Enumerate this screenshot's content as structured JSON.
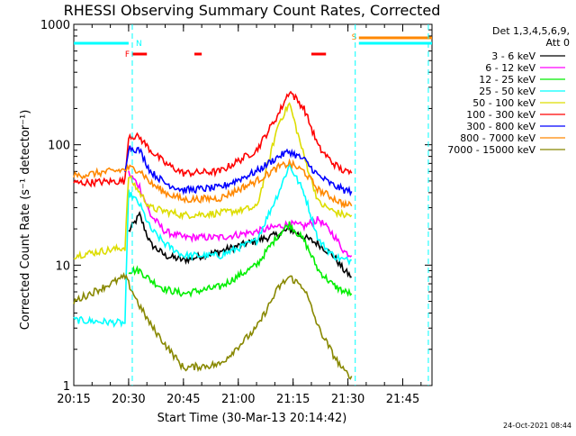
{
  "chart_data": {
    "type": "line",
    "title": "RHESSI Observing Summary Count Rates, Corrected",
    "xlabel": "Start Time (30-Mar-13 20:14:42)",
    "ylabel": "Corrected Count Rate (s⁻¹ detector⁻¹)",
    "y_scale": "log",
    "ylim": [
      1,
      1000
    ],
    "xlim": [
      "20:15",
      "21:53"
    ],
    "x_ticks": [
      "20:15",
      "20:30",
      "20:45",
      "21:00",
      "21:15",
      "21:30",
      "21:45"
    ],
    "y_ticks": [
      "1",
      "10",
      "100",
      "1000"
    ],
    "legend": {
      "placement": "right",
      "header": [
        "Det 1,3,4,5,6,9,",
        "Att 0"
      ]
    },
    "series": [
      {
        "name": "3 - 6 keV",
        "color": "#000000",
        "x": [
          "20:15",
          "20:29",
          "20:30",
          "20:33",
          "20:36",
          "20:40",
          "20:45",
          "20:55",
          "21:05",
          "21:11",
          "21:14",
          "21:18",
          "21:22",
          "21:26",
          "21:29",
          "21:31"
        ],
        "y": [
          null,
          null,
          19,
          26,
          15,
          12,
          11,
          13,
          16,
          18,
          20,
          17,
          15,
          12,
          9,
          8
        ]
      },
      {
        "name": "6 - 12 keV",
        "color": "#ff00ff",
        "x": [
          "20:15",
          "20:29",
          "20:30",
          "20:33",
          "20:36",
          "20:40",
          "20:45",
          "20:55",
          "21:05",
          "21:11",
          "21:14",
          "21:18",
          "21:22",
          "21:26",
          "21:29",
          "21:31"
        ],
        "y": [
          null,
          null,
          58,
          45,
          26,
          19,
          17,
          17,
          19,
          21,
          22,
          21,
          24,
          18,
          13,
          12
        ]
      },
      {
        "name": "12 - 25 keV",
        "color": "#00ee00",
        "x": [
          "20:15",
          "20:29",
          "20:30",
          "20:33",
          "20:36",
          "20:40",
          "20:45",
          "20:55",
          "21:05",
          "21:11",
          "21:14",
          "21:18",
          "21:22",
          "21:26",
          "21:29",
          "21:31"
        ],
        "y": [
          null,
          null,
          9,
          9,
          7.5,
          6.3,
          5.8,
          6.6,
          10,
          18,
          22,
          16,
          9,
          6.8,
          6,
          5.8
        ]
      },
      {
        "name": "25 - 50 keV",
        "color": "#00ffff",
        "x": [
          "20:15",
          "20:29",
          "20:30",
          "20:33",
          "20:36",
          "20:40",
          "20:45",
          "20:55",
          "21:05",
          "21:11",
          "21:14",
          "21:18",
          "21:22",
          "21:26",
          "21:29",
          "21:31"
        ],
        "y": [
          3.5,
          3.3,
          40,
          32,
          20,
          15,
          12,
          12,
          16,
          40,
          68,
          40,
          16,
          12,
          11,
          11
        ]
      },
      {
        "name": "50 - 100 keV",
        "color": "#dddd00",
        "x": [
          "20:15",
          "20:29",
          "20:30",
          "20:33",
          "20:36",
          "20:40",
          "20:45",
          "20:55",
          "21:05",
          "21:11",
          "21:14",
          "21:18",
          "21:22",
          "21:26",
          "21:29",
          "21:31"
        ],
        "y": [
          12,
          14,
          55,
          40,
          30,
          28,
          26,
          27,
          30,
          150,
          220,
          80,
          33,
          28,
          26,
          26
        ]
      },
      {
        "name": "100 - 300 keV",
        "color": "#ff0000",
        "x": [
          "20:15",
          "20:29",
          "20:30",
          "20:33",
          "20:36",
          "20:40",
          "20:45",
          "20:55",
          "21:05",
          "21:11",
          "21:14",
          "21:18",
          "21:22",
          "21:26",
          "21:29",
          "21:31"
        ],
        "y": [
          48,
          50,
          120,
          115,
          90,
          70,
          58,
          60,
          90,
          180,
          280,
          200,
          95,
          70,
          60,
          58
        ]
      },
      {
        "name": "300 - 800 keV",
        "color": "#0000ff",
        "x": [
          "20:15",
          "20:29",
          "20:30",
          "20:33",
          "20:36",
          "20:40",
          "20:45",
          "20:55",
          "21:05",
          "21:11",
          "21:14",
          "21:18",
          "21:22",
          "21:26",
          "21:29",
          "21:31"
        ],
        "y": [
          null,
          62,
          95,
          90,
          60,
          48,
          42,
          44,
          60,
          80,
          88,
          75,
          55,
          46,
          42,
          41
        ]
      },
      {
        "name": "800 - 7000 keV",
        "color": "#ff8800",
        "x": [
          "20:15",
          "20:29",
          "20:30",
          "20:33",
          "20:36",
          "20:40",
          "20:45",
          "20:55",
          "21:05",
          "21:11",
          "21:14",
          "21:18",
          "21:22",
          "21:26",
          "21:29",
          "21:31"
        ],
        "y": [
          55,
          62,
          64,
          62,
          48,
          40,
          35,
          36,
          50,
          65,
          70,
          60,
          42,
          36,
          32,
          31
        ]
      },
      {
        "name": "7000 - 15000 keV",
        "color": "#888800",
        "x": [
          "20:15",
          "20:29",
          "20:30",
          "20:33",
          "20:36",
          "20:40",
          "20:45",
          "20:55",
          "21:05",
          "21:11",
          "21:14",
          "21:18",
          "21:22",
          "21:26",
          "21:29",
          "21:31"
        ],
        "y": [
          5,
          8,
          7,
          4.6,
          3.2,
          2.2,
          1.4,
          1.5,
          3,
          6.5,
          8,
          6.5,
          3,
          1.8,
          1.3,
          1.2
        ]
      }
    ],
    "flags": [
      {
        "label": "F",
        "color": "#ff0000"
      },
      {
        "label": "N",
        "color": "#00ffff"
      },
      {
        "label": "S",
        "color": "#ff8800"
      }
    ],
    "timestamp": "24-Oct-2021 08:44"
  }
}
